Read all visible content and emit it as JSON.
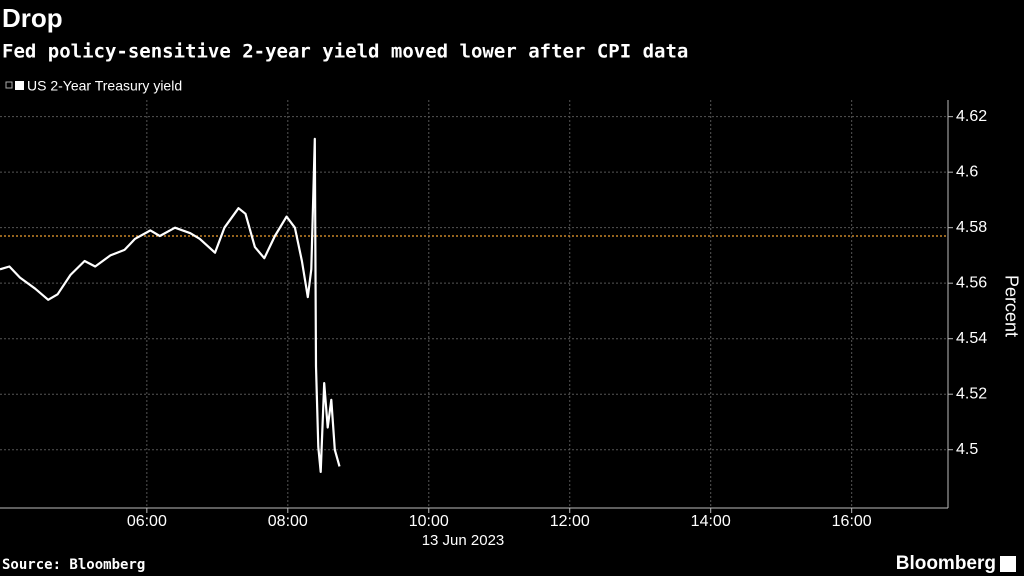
{
  "chart_data": {
    "type": "line",
    "title": "Drop",
    "subtitle": "Fed policy-sensitive 2-year yield moved lower after CPI data",
    "x": [
      "03:55",
      "04:03",
      "04:12",
      "04:25",
      "04:36",
      "04:44",
      "04:55",
      "05:07",
      "05:16",
      "05:29",
      "05:41",
      "05:50",
      "06:03",
      "06:11",
      "06:24",
      "06:37",
      "06:45",
      "06:58",
      "07:06",
      "07:18",
      "07:24",
      "07:32",
      "07:40",
      "07:49",
      "07:59",
      "08:06",
      "08:12",
      "08:17",
      "08:20",
      "08:23",
      "08:24",
      "08:26",
      "08:28",
      "08:31",
      "08:34",
      "08:37",
      "08:40",
      "08:44"
    ],
    "series": [
      {
        "name": "US 2-Year Treasury yield",
        "color": "#ffffff",
        "values": [
          4.565,
          4.566,
          4.562,
          4.558,
          4.554,
          4.556,
          4.563,
          4.568,
          4.566,
          4.57,
          4.572,
          4.576,
          4.579,
          4.577,
          4.58,
          4.578,
          4.576,
          4.571,
          4.58,
          4.587,
          4.585,
          4.573,
          4.569,
          4.577,
          4.584,
          4.58,
          4.568,
          4.555,
          4.565,
          4.612,
          4.53,
          4.501,
          4.492,
          4.524,
          4.508,
          4.518,
          4.5,
          4.494
        ]
      }
    ],
    "xlim": [
      "03:55",
      "17:22"
    ],
    "xticks": [
      "06:00",
      "08:00",
      "10:00",
      "12:00",
      "14:00",
      "16:00"
    ],
    "xlabel": "13 Jun 2023",
    "ylim": [
      4.479,
      4.626
    ],
    "yticks": [
      4.5,
      4.52,
      4.54,
      4.56,
      4.58,
      4.6,
      4.62
    ],
    "ylabel": "Percent",
    "reference_line": {
      "value": 4.577,
      "color": "#f0a030"
    },
    "grid": true,
    "source": "Source: Bloomberg",
    "brand": "Bloomberg"
  }
}
